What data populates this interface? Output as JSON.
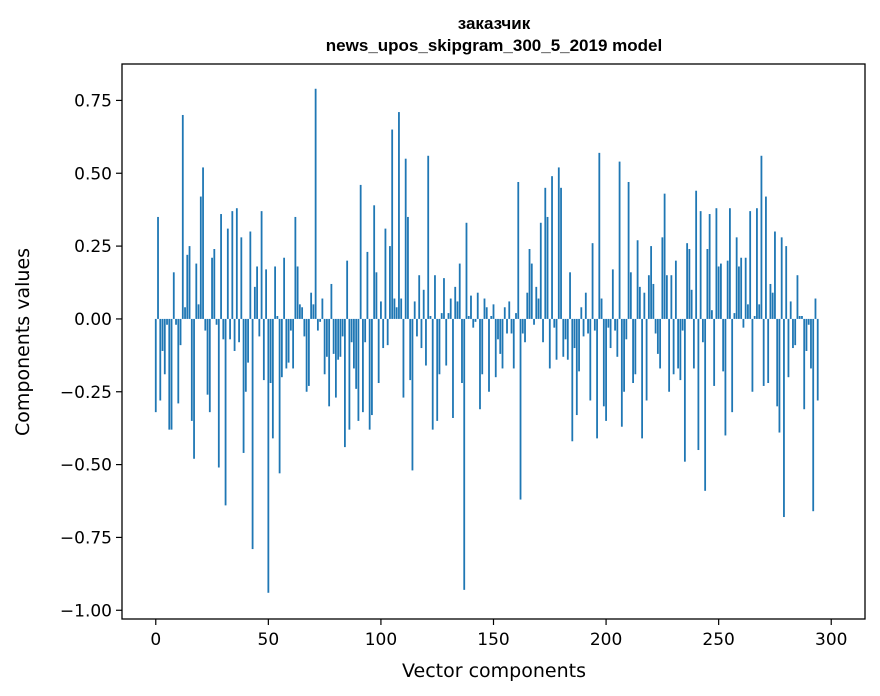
{
  "chart_data": {
    "type": "bar",
    "title": "заказчик",
    "subtitle": "news_upos_skipgram_300_5_2019 model",
    "xlabel": "Vector components",
    "ylabel": "Components values",
    "xlim": [
      -15,
      315
    ],
    "ylim": [
      -1.03,
      0.875
    ],
    "xticks": [
      0,
      50,
      100,
      150,
      200,
      250,
      300
    ],
    "xtick_labels": [
      "0",
      "50",
      "100",
      "150",
      "200",
      "250",
      "300"
    ],
    "yticks": [
      -1.0,
      -0.75,
      -0.5,
      -0.25,
      0.0,
      0.25,
      0.5,
      0.75
    ],
    "ytick_labels": [
      "−1.00",
      "−0.75",
      "−0.50",
      "−0.25",
      "0.00",
      "0.25",
      "0.50",
      "0.75"
    ],
    "bar_color": "#1f77b4",
    "grid": false,
    "values": [
      -0.32,
      0.35,
      -0.28,
      -0.11,
      -0.19,
      -0.02,
      -0.38,
      -0.38,
      0.16,
      -0.02,
      -0.29,
      -0.09,
      0.7,
      0.04,
      0.22,
      0.25,
      -0.35,
      -0.48,
      0.19,
      0.05,
      0.42,
      0.52,
      -0.04,
      -0.26,
      -0.32,
      0.21,
      0.24,
      -0.02,
      -0.51,
      0.36,
      -0.07,
      -0.64,
      0.31,
      -0.07,
      0.37,
      -0.11,
      0.38,
      -0.08,
      0.28,
      -0.46,
      -0.25,
      -0.15,
      0.3,
      -0.79,
      0.11,
      0.18,
      -0.06,
      0.37,
      -0.21,
      0.17,
      -0.94,
      -0.22,
      -0.41,
      0.18,
      0.01,
      -0.53,
      -0.2,
      0.21,
      -0.17,
      -0.15,
      -0.04,
      -0.17,
      0.35,
      0.18,
      0.05,
      0.04,
      -0.06,
      -0.25,
      -0.23,
      0.09,
      0.05,
      0.79,
      -0.04,
      -0.01,
      0.07,
      -0.19,
      -0.13,
      -0.3,
      0.12,
      -0.12,
      -0.27,
      -0.14,
      -0.13,
      -0.06,
      -0.44,
      0.2,
      -0.38,
      -0.08,
      -0.17,
      -0.24,
      -0.35,
      0.46,
      -0.32,
      -0.08,
      0.23,
      -0.38,
      -0.33,
      0.39,
      0.16,
      -0.22,
      0.06,
      -0.1,
      0.31,
      -0.09,
      0.25,
      0.65,
      0.07,
      0.04,
      0.71,
      0.07,
      -0.27,
      0.55,
      0.35,
      -0.21,
      -0.52,
      0.06,
      -0.06,
      0.15,
      -0.1,
      0.1,
      -0.16,
      0.56,
      0.01,
      -0.38,
      0.15,
      -0.35,
      -0.19,
      0.02,
      0.14,
      -0.16,
      0.02,
      0.07,
      -0.34,
      0.11,
      0.06,
      0.19,
      -0.22,
      -0.93,
      0.33,
      0.01,
      0.08,
      -0.03,
      -0.01,
      0.09,
      -0.31,
      -0.19,
      0.07,
      0.04,
      -0.25,
      0.01,
      0.05,
      -0.2,
      -0.07,
      -0.12,
      -0.17,
      0.04,
      -0.05,
      0.06,
      -0.05,
      -0.17,
      0.02,
      0.47,
      -0.62,
      -0.05,
      -0.08,
      0.09,
      0.24,
      0.19,
      -0.02,
      0.11,
      0.07,
      0.33,
      -0.08,
      0.45,
      0.35,
      -0.17,
      0.49,
      -0.03,
      -0.14,
      0.52,
      0.45,
      -0.13,
      -0.07,
      -0.14,
      0.16,
      -0.42,
      -0.1,
      -0.33,
      -0.18,
      0.04,
      -0.06,
      0.09,
      -0.05,
      -0.28,
      0.26,
      -0.04,
      -0.41,
      0.57,
      0.07,
      -0.3,
      -0.35,
      -0.03,
      -0.1,
      0.17,
      -0.04,
      -0.13,
      0.54,
      -0.37,
      -0.25,
      -0.07,
      0.47,
      0.16,
      -0.22,
      -0.19,
      0.27,
      0.11,
      -0.41,
      0.09,
      -0.28,
      0.15,
      0.25,
      0.12,
      -0.05,
      -0.12,
      -0.17,
      0.28,
      0.43,
      0.15,
      -0.25,
      0.15,
      -0.19,
      0.2,
      -0.17,
      -0.21,
      -0.04,
      -0.49,
      0.26,
      0.24,
      0.1,
      -0.17,
      0.44,
      -0.45,
      0.37,
      -0.08,
      -0.59,
      0.24,
      0.36,
      0.03,
      -0.23,
      0.38,
      0.18,
      0.19,
      -0.18,
      -0.4,
      0.2,
      0.38,
      -0.32,
      0.02,
      0.28,
      0.18,
      0.21,
      -0.03,
      0.21,
      0.05,
      0.37,
      -0.25,
      0.01,
      0.38,
      0.05,
      0.56,
      -0.23,
      0.42,
      -0.22,
      0.12,
      0.09,
      0.3,
      -0.3,
      -0.39,
      0.28,
      -0.68,
      0.25,
      -0.2,
      0.06,
      -0.1,
      -0.09,
      0.15,
      0.01,
      0.01,
      -0.31,
      -0.11,
      -0.02,
      -0.17,
      -0.66,
      0.07,
      -0.28
    ]
  }
}
